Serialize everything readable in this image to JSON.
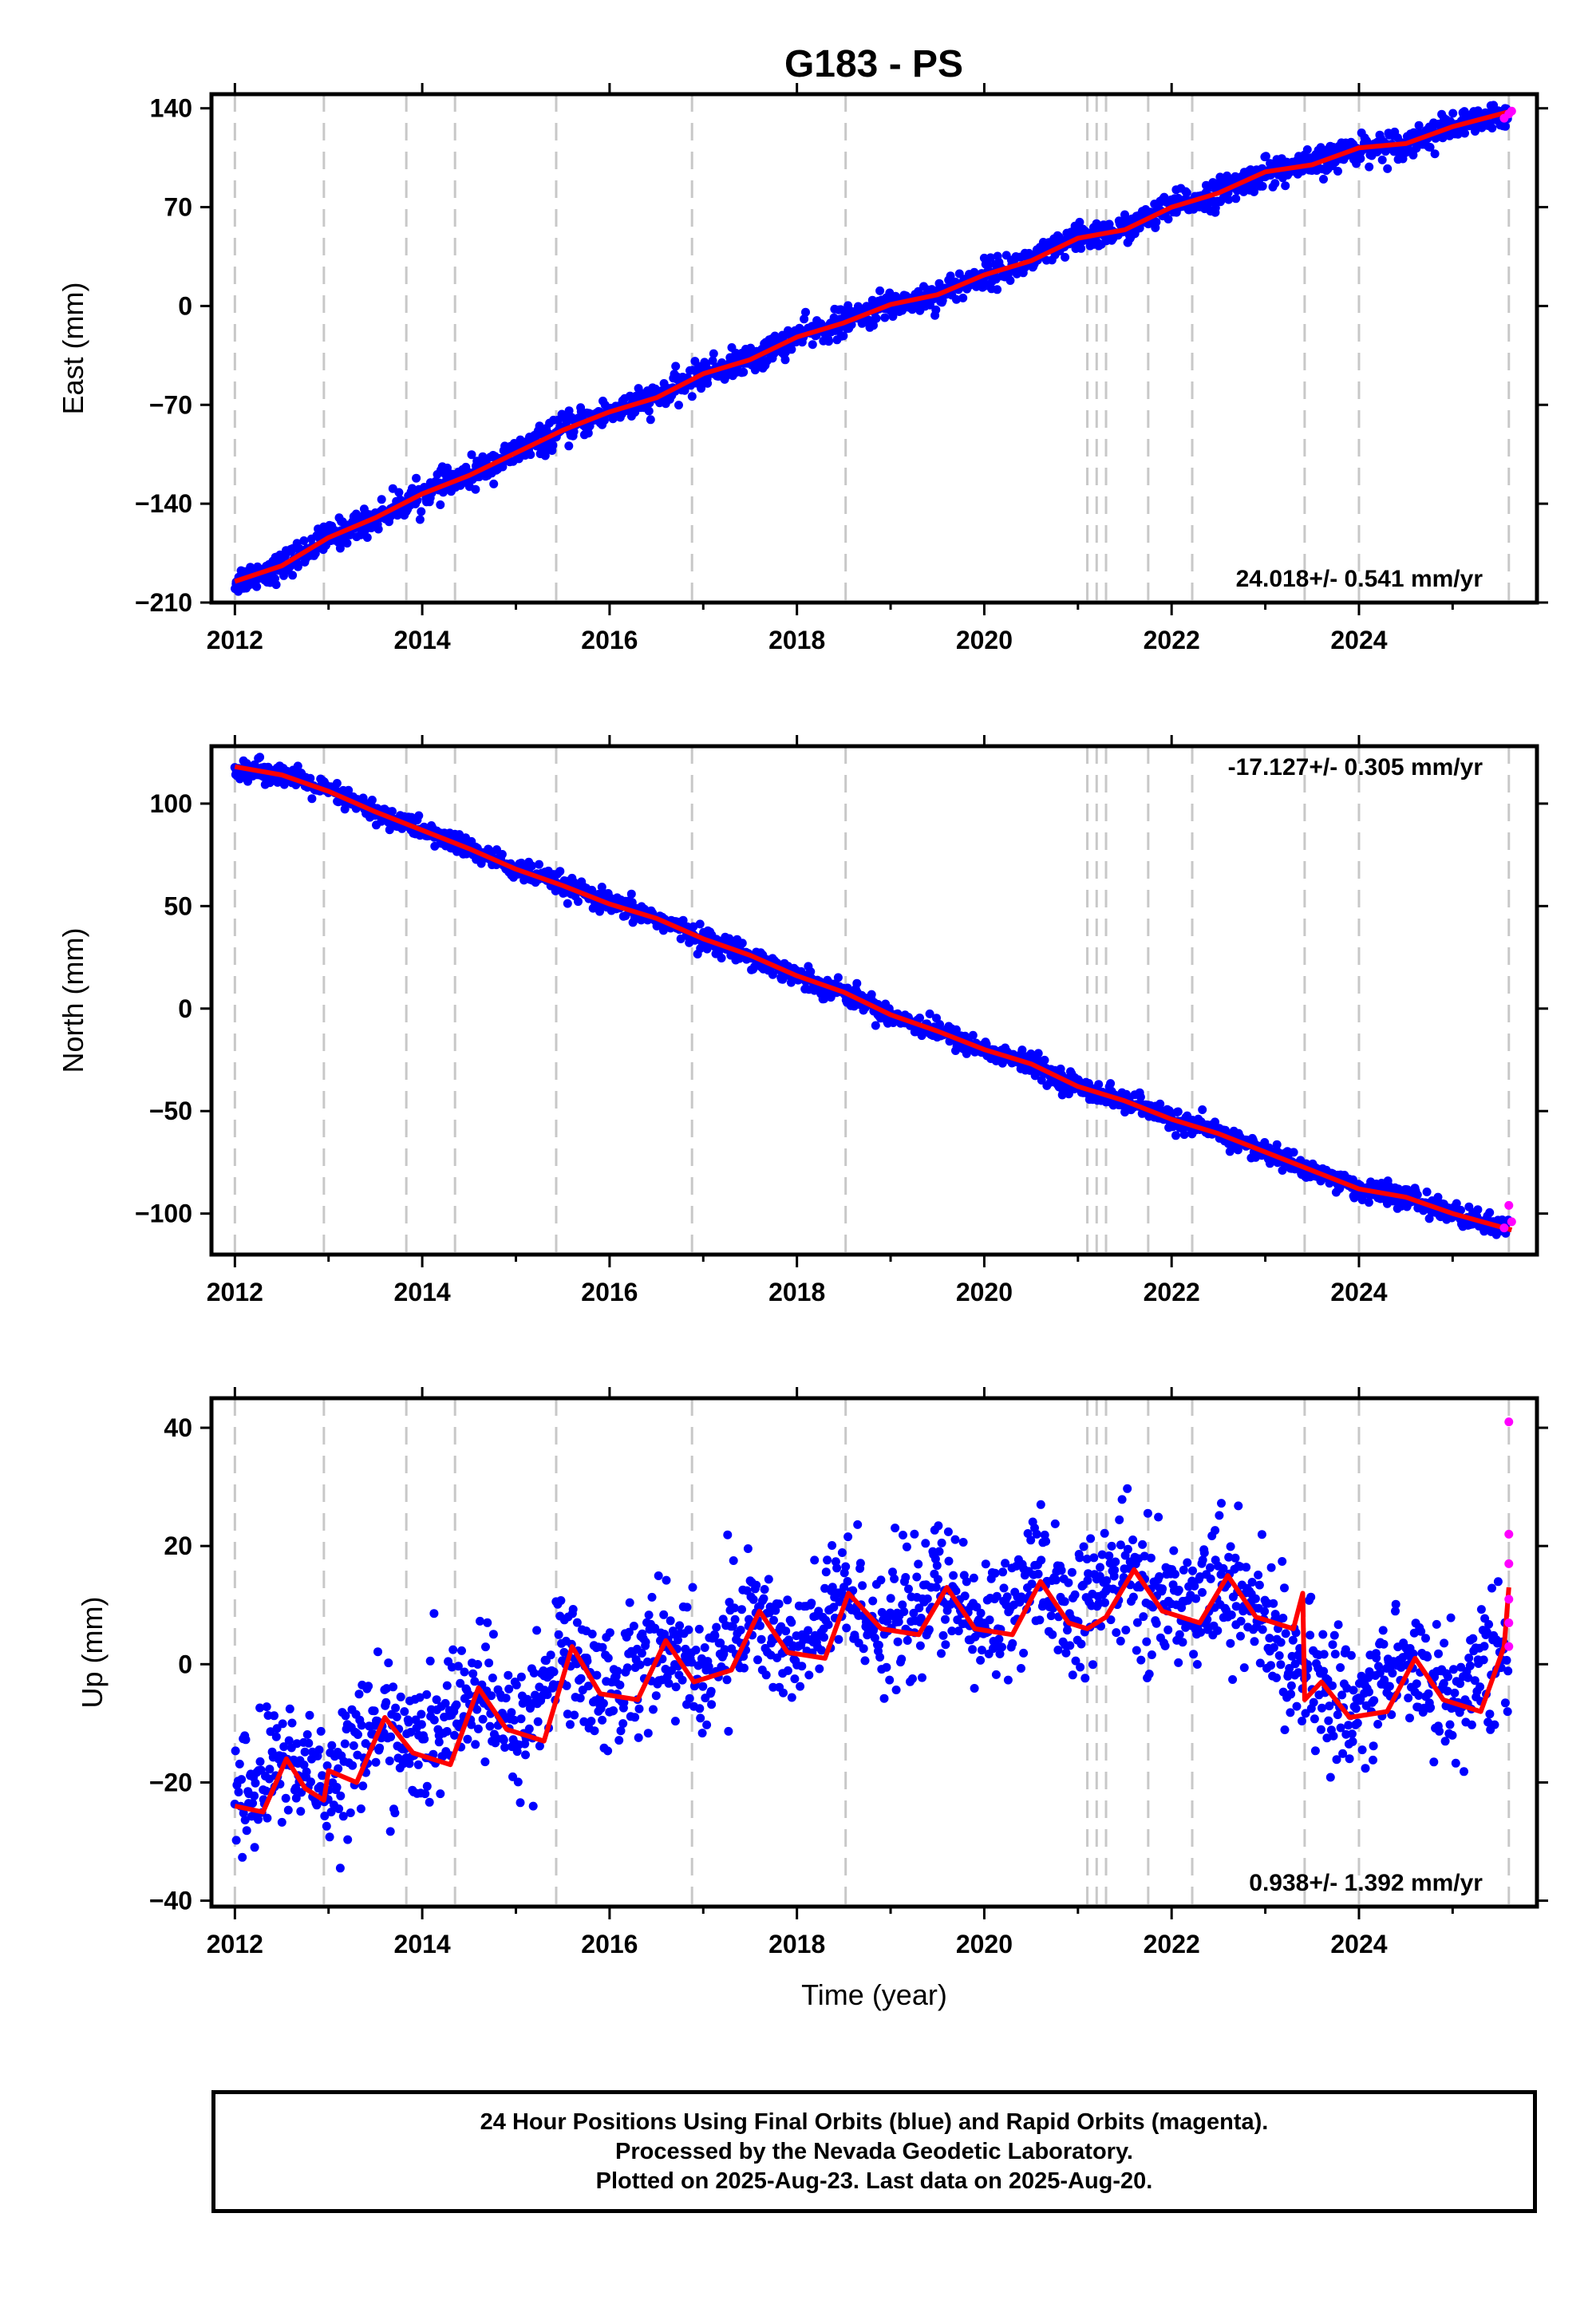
{
  "title": "G183 - PS",
  "colors": {
    "final_orbits": "#0000ff",
    "rapid_orbits": "#ff00ff",
    "model": "#ff0000",
    "event_lines": "#c8c8c8",
    "frame": "#000000"
  },
  "chart_data": [
    {
      "type": "scatter",
      "component": "east",
      "ylabel": "East (mm)",
      "xlim": [
        2011.75,
        2025.9
      ],
      "ylim": [
        -210,
        150
      ],
      "yticks": [
        -210,
        -140,
        -70,
        0,
        70,
        140
      ],
      "ytick_labels": [
        "−210",
        "−140",
        "−70",
        "0",
        "70",
        "140"
      ],
      "xticks": [
        2012,
        2014,
        2016,
        2018,
        2020,
        2022,
        2024
      ],
      "xtick_labels": [
        "2012",
        "2014",
        "2016",
        "2018",
        "2020",
        "2022",
        "2024"
      ],
      "rate_label": "24.018+/- 0.541 mm/yr",
      "rate_position": "bottom-right",
      "series": [
        {
          "role": "final",
          "x": [
            2012.0,
            2012.5,
            2013.0,
            2013.5,
            2014.0,
            2014.5,
            2015.0,
            2015.5,
            2016.0,
            2016.5,
            2017.0,
            2017.5,
            2018.0,
            2018.5,
            2019.0,
            2019.5,
            2020.0,
            2020.5,
            2021.0,
            2021.5,
            2022.0,
            2022.5,
            2023.0,
            2023.5,
            2024.0,
            2024.5,
            2025.0,
            2025.5
          ],
          "y": [
            -195,
            -184,
            -164,
            -150,
            -133,
            -120,
            -104,
            -88,
            -75,
            -65,
            -48,
            -38,
            -22,
            -12,
            1,
            8,
            22,
            32,
            48,
            54,
            70,
            80,
            95,
            100,
            112,
            115,
            127,
            133
          ]
        },
        {
          "role": "rapid",
          "x": [
            2025.55,
            2025.6,
            2025.63
          ],
          "y": [
            133,
            136,
            138
          ]
        },
        {
          "role": "model",
          "x": [
            2012.0,
            2012.5,
            2013.0,
            2013.5,
            2014.0,
            2014.5,
            2015.0,
            2015.5,
            2016.0,
            2016.5,
            2017.0,
            2017.5,
            2018.0,
            2018.5,
            2019.0,
            2019.5,
            2020.0,
            2020.5,
            2021.0,
            2021.5,
            2022.0,
            2022.5,
            2023.0,
            2023.5,
            2024.0,
            2024.5,
            2025.0,
            2025.63
          ],
          "y": [
            -195,
            -184,
            -164,
            -150,
            -133,
            -120,
            -104,
            -88,
            -75,
            -65,
            -48,
            -38,
            -22,
            -12,
            1,
            8,
            22,
            32,
            48,
            54,
            70,
            80,
            95,
            100,
            112,
            115,
            127,
            138
          ]
        }
      ]
    },
    {
      "type": "scatter",
      "component": "north",
      "ylabel": "North (mm)",
      "xlim": [
        2011.75,
        2025.9
      ],
      "ylim": [
        -120,
        128
      ],
      "yticks": [
        -100,
        -50,
        0,
        50,
        100
      ],
      "ytick_labels": [
        "−100",
        "−50",
        "0",
        "50",
        "100"
      ],
      "xticks": [
        2012,
        2014,
        2016,
        2018,
        2020,
        2022,
        2024
      ],
      "xtick_labels": [
        "2012",
        "2014",
        "2016",
        "2018",
        "2020",
        "2022",
        "2024"
      ],
      "rate_label": "-17.127+/- 0.305 mm/yr",
      "rate_position": "top-right",
      "series": [
        {
          "role": "final",
          "x": [
            2012.0,
            2012.5,
            2013.0,
            2013.5,
            2014.0,
            2014.5,
            2015.0,
            2015.5,
            2016.0,
            2016.5,
            2017.0,
            2017.5,
            2018.0,
            2018.5,
            2019.0,
            2019.5,
            2020.0,
            2020.5,
            2021.0,
            2021.5,
            2022.0,
            2022.5,
            2023.0,
            2023.5,
            2024.0,
            2024.5,
            2025.0,
            2025.5
          ],
          "y": [
            118,
            114,
            106,
            96,
            87,
            78,
            68,
            60,
            51,
            44,
            34,
            26,
            16,
            8,
            -3,
            -11,
            -20,
            -27,
            -38,
            -45,
            -54,
            -61,
            -70,
            -79,
            -88,
            -92,
            -100,
            -107
          ]
        },
        {
          "role": "rapid",
          "x": [
            2025.55,
            2025.6,
            2025.63
          ],
          "y": [
            -107,
            -96,
            -104
          ]
        },
        {
          "role": "model",
          "x": [
            2012.0,
            2012.5,
            2013.0,
            2013.5,
            2014.0,
            2014.5,
            2015.0,
            2015.5,
            2016.0,
            2016.5,
            2017.0,
            2017.5,
            2018.0,
            2018.5,
            2019.0,
            2019.5,
            2020.0,
            2020.5,
            2021.0,
            2021.5,
            2022.0,
            2022.5,
            2023.0,
            2023.5,
            2024.0,
            2024.5,
            2025.0,
            2025.63
          ],
          "y": [
            118,
            114,
            106,
            96,
            87,
            78,
            68,
            60,
            51,
            44,
            34,
            26,
            16,
            8,
            -3,
            -11,
            -20,
            -27,
            -38,
            -45,
            -54,
            -61,
            -70,
            -79,
            -88,
            -92,
            -100,
            -108
          ]
        }
      ]
    },
    {
      "type": "scatter",
      "component": "up",
      "ylabel": "Up (mm)",
      "xlabel": "Time (year)",
      "xlim": [
        2011.75,
        2025.9
      ],
      "ylim": [
        -41,
        45
      ],
      "yticks": [
        -40,
        -20,
        0,
        20,
        40
      ],
      "ytick_labels": [
        "−40",
        "−20",
        "0",
        "20",
        "40"
      ],
      "xticks": [
        2012,
        2014,
        2016,
        2018,
        2020,
        2022,
        2024
      ],
      "xtick_labels": [
        "2012",
        "2014",
        "2016",
        "2018",
        "2020",
        "2022",
        "2024"
      ],
      "rate_label": "0.938+/- 1.392 mm/yr",
      "rate_position": "bottom-right",
      "series": [
        {
          "role": "final",
          "x": [
            2012.0,
            2012.5,
            2013.0,
            2013.5,
            2014.0,
            2014.5,
            2015.0,
            2015.5,
            2016.0,
            2016.5,
            2017.0,
            2017.5,
            2018.0,
            2018.5,
            2019.0,
            2019.5,
            2020.0,
            2020.5,
            2021.0,
            2021.5,
            2022.0,
            2022.5,
            2023.0,
            2023.5,
            2024.0,
            2024.5,
            2025.0,
            2025.5
          ],
          "y": [
            -24,
            -16,
            -20,
            -10,
            -15,
            -4,
            -12,
            2,
            -5,
            4,
            -2,
            9,
            1,
            12,
            6,
            13,
            6,
            14,
            8,
            16,
            9,
            15,
            7,
            -4,
            -7,
            1,
            -6,
            2
          ]
        },
        {
          "role": "rapid",
          "x": [
            2025.6,
            2025.6,
            2025.6,
            2025.6,
            2025.6,
            2025.6
          ],
          "y": [
            41,
            22,
            17,
            11,
            7,
            3
          ]
        },
        {
          "role": "model",
          "x": [
            2012.0,
            2012.3,
            2012.55,
            2012.75,
            2012.95,
            2013.0,
            2013.3,
            2013.6,
            2013.9,
            2014.3,
            2014.6,
            2014.9,
            2015.3,
            2015.6,
            2015.9,
            2016.3,
            2016.6,
            2016.9,
            2017.3,
            2017.6,
            2017.9,
            2018.3,
            2018.55,
            2018.9,
            2019.3,
            2019.6,
            2019.9,
            2020.3,
            2020.6,
            2020.9,
            2021.1,
            2021.3,
            2021.6,
            2021.9,
            2022.3,
            2022.6,
            2022.9,
            2023.3,
            2023.4,
            2023.42,
            2023.6,
            2023.9,
            2024.3,
            2024.6,
            2024.9,
            2025.3,
            2025.55,
            2025.6
          ],
          "y": [
            -24,
            -25,
            -16,
            -21,
            -23,
            -18,
            -20,
            -9,
            -15,
            -17,
            -4,
            -11,
            -13,
            3,
            -5,
            -6,
            4,
            -3,
            -1,
            9,
            2,
            1,
            12,
            6,
            5,
            13,
            6,
            5,
            14,
            7,
            6,
            8,
            16,
            9,
            7,
            15,
            8,
            6,
            12,
            -6,
            -3,
            -9,
            -8,
            1,
            -6,
            -8,
            3,
            13
          ]
        }
      ]
    }
  ],
  "footer": {
    "line1": "24 Hour Positions Using Final Orbits (blue) and Rapid Orbits (magenta).",
    "line2": "Processed by the Nevada Geodetic Laboratory.",
    "line3": "Plotted on 2025-Aug-23. Last data on 2025-Aug-20."
  },
  "event_years": [
    2012.0,
    2012.95,
    2013.83,
    2014.35,
    2015.43,
    2016.88,
    2018.52,
    2021.1,
    2021.2,
    2021.3,
    2021.75,
    2022.22,
    2023.42,
    2024.0,
    2025.6
  ]
}
